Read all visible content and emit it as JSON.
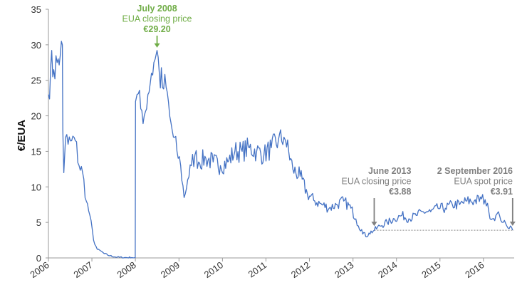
{
  "chart_data": {
    "type": "line",
    "title": "",
    "xlabel": "",
    "ylabel": "€/EUA",
    "ylim": [
      0,
      35
    ],
    "yticks": [
      "0",
      "5",
      "10",
      "15",
      "20",
      "25",
      "30",
      "35"
    ],
    "xlim": [
      "2006-01-01",
      "2016-09-15"
    ],
    "xtick_labels": [
      "2006",
      "2007",
      "2008",
      "2009",
      "2010",
      "2011",
      "2012",
      "2013",
      "2014",
      "2015",
      "2016"
    ],
    "grid": false,
    "series": [
      {
        "color": "#4472C4",
        "x": [
          "2006-01-01",
          "2006-01-20",
          "2006-02-15",
          "2006-03-15",
          "2006-04-10",
          "2006-04-20",
          "2006-04-28",
          "2006-05-02",
          "2006-05-10",
          "2006-05-25",
          "2006-06-15",
          "2006-07-15",
          "2006-08-15",
          "2006-09-15",
          "2006-10-15",
          "2006-11-15",
          "2006-12-15",
          "2007-01-15",
          "2007-02-15",
          "2007-03-15",
          "2007-04-15",
          "2007-06-01",
          "2007-08-01",
          "2007-10-01",
          "2007-12-01",
          "2007-12-31",
          "2008-01-02",
          "2008-01-15",
          "2008-02-15",
          "2008-03-15",
          "2008-04-15",
          "2008-05-15",
          "2008-06-15",
          "2008-07-01",
          "2008-07-20",
          "2008-08-15",
          "2008-09-15",
          "2008-10-15",
          "2008-11-15",
          "2008-12-15",
          "2009-01-15",
          "2009-02-13",
          "2009-03-15",
          "2009-04-15",
          "2009-05-15",
          "2009-06-15",
          "2009-08-15",
          "2009-10-15",
          "2009-12-15",
          "2010-02-15",
          "2010-04-15",
          "2010-06-15",
          "2010-08-15",
          "2010-10-15",
          "2010-12-15",
          "2011-02-15",
          "2011-04-15",
          "2011-06-01",
          "2011-06-15",
          "2011-08-15",
          "2011-10-15",
          "2011-12-15",
          "2012-02-15",
          "2012-04-15",
          "2012-06-15",
          "2012-08-15",
          "2012-10-15",
          "2012-12-15",
          "2013-01-25",
          "2013-02-15",
          "2013-03-15",
          "2013-04-18",
          "2013-05-15",
          "2013-06-28",
          "2013-08-15",
          "2013-10-15",
          "2013-12-15",
          "2014-02-15",
          "2014-04-15",
          "2014-06-15",
          "2014-08-15",
          "2014-10-15",
          "2014-12-15",
          "2015-02-15",
          "2015-04-15",
          "2015-06-15",
          "2015-08-15",
          "2015-10-15",
          "2015-12-15",
          "2016-01-15",
          "2016-02-15",
          "2016-03-15",
          "2016-04-15",
          "2016-05-15",
          "2016-06-15",
          "2016-07-15",
          "2016-08-15",
          "2016-09-02"
        ],
        "y": [
          23.0,
          27.0,
          26.5,
          27.5,
          28.5,
          30.5,
          30.0,
          18.0,
          12.0,
          17.0,
          16.0,
          16.5,
          16.5,
          13.0,
          12.0,
          8.0,
          6.0,
          2.5,
          1.2,
          1.0,
          0.6,
          0.3,
          0.1,
          0.05,
          0.05,
          0.05,
          22.0,
          23.0,
          21.0,
          20.0,
          23.0,
          26.0,
          28.0,
          29.2,
          26.0,
          24.0,
          24.0,
          20.0,
          17.0,
          15.0,
          13.0,
          8.5,
          11.0,
          13.0,
          14.5,
          13.5,
          14.0,
          13.5,
          13.0,
          13.5,
          15.0,
          15.0,
          15.5,
          15.0,
          14.5,
          15.5,
          16.5,
          17.0,
          16.5,
          12.5,
          11.5,
          9.0,
          8.0,
          7.5,
          7.0,
          7.5,
          8.0,
          7.0,
          5.5,
          4.5,
          4.0,
          3.0,
          3.5,
          3.88,
          4.5,
          5.0,
          5.5,
          6.0,
          5.5,
          6.0,
          6.5,
          6.5,
          7.0,
          7.0,
          7.5,
          7.5,
          8.0,
          8.0,
          8.3,
          8.2,
          6.5,
          5.5,
          6.0,
          6.0,
          5.0,
          4.5,
          4.5,
          3.91
        ]
      }
    ],
    "reference_line": {
      "y": 3.9,
      "style": "dotted",
      "from": "2013-06-28",
      "to": "2016-09-15"
    },
    "annotations": [
      {
        "title": "July 2008",
        "text": "EUA closing price",
        "value": "€29.20",
        "x": "2008-07-01",
        "y": 29.2,
        "color": "#70AD47"
      },
      {
        "title": "June 2013",
        "text": "EUA closing price",
        "value": "€3.88",
        "x": "2013-06-28",
        "y": 3.88,
        "color": "#808080"
      },
      {
        "title": "2 September 2016",
        "text": "EUA spot price",
        "value": "€3.91",
        "x": "2016-09-02",
        "y": 3.91,
        "color": "#808080"
      }
    ]
  }
}
